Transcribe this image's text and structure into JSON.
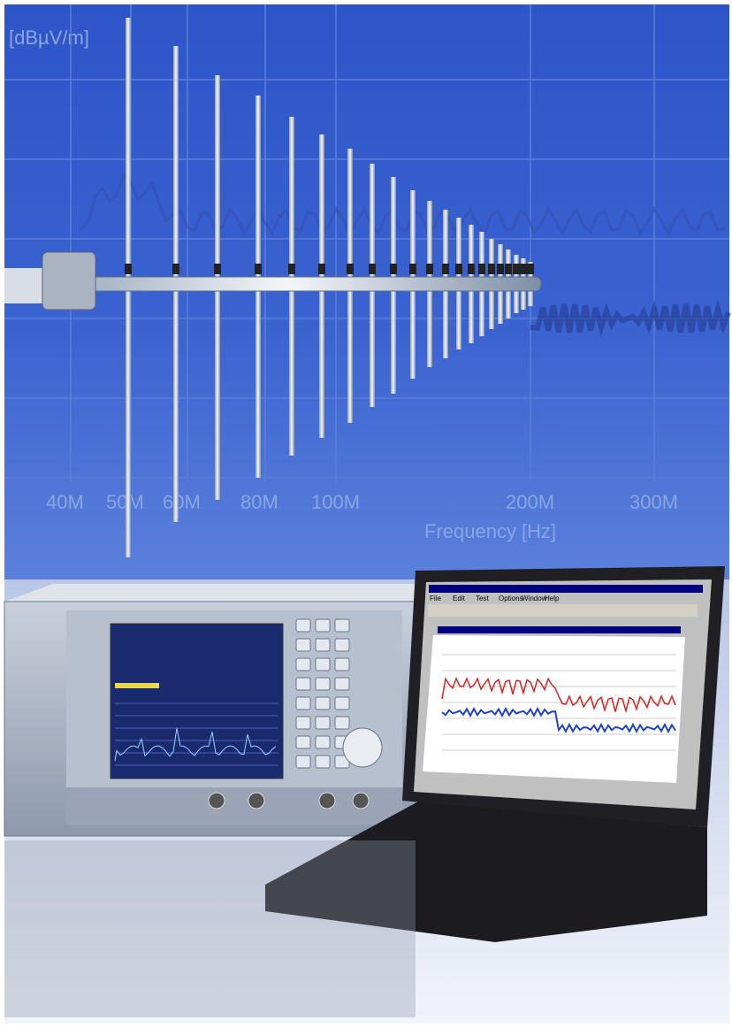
{
  "background_chart": {
    "y_title": "[dBµV/m]",
    "x_labels": [
      "40M",
      "50M",
      "60M",
      "80M",
      "100M",
      "200M",
      "300M"
    ],
    "x_title": "Frequency [Hz]"
  },
  "laptop": {
    "menu": [
      "File",
      "Edit",
      "Test",
      "Options",
      "Window",
      "Help"
    ]
  }
}
